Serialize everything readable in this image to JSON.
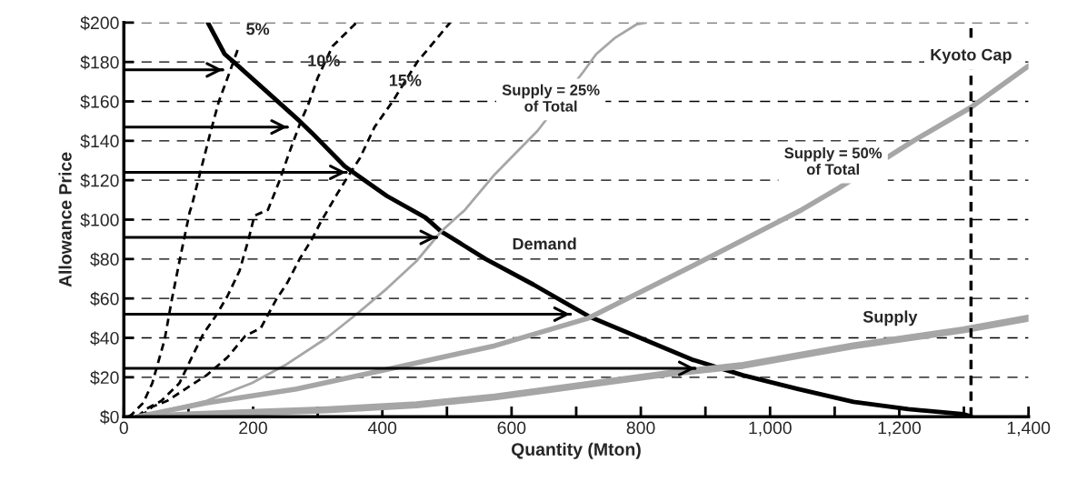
{
  "chart_data": {
    "type": "line",
    "xlabel": "Quantity (Mton)",
    "ylabel": "Allowance Price",
    "xlim": [
      0,
      1400
    ],
    "ylim": [
      0,
      200
    ],
    "xticks": [
      0,
      {
        "value": 100,
        "label": null
      },
      200,
      {
        "value": 300,
        "label": null
      },
      400,
      {
        "value": 500,
        "label": null
      },
      600,
      {
        "value": 700,
        "label": null
      },
      800,
      {
        "value": 900,
        "label": null
      },
      {
        "value": 1000,
        "label": "1,000"
      },
      {
        "value": 1100,
        "label": null
      },
      {
        "value": 1200,
        "label": "1,200"
      },
      {
        "value": 1300,
        "label": null
      },
      {
        "value": 1400,
        "label": "1,400"
      }
    ],
    "yticks": [
      {
        "value": 0,
        "label": "$0"
      },
      {
        "value": 20,
        "label": "$20"
      },
      {
        "value": 40,
        "label": "$40"
      },
      {
        "value": 60,
        "label": "$60"
      },
      {
        "value": 80,
        "label": "$80"
      },
      {
        "value": 100,
        "label": "$100"
      },
      {
        "value": 120,
        "label": "$120"
      },
      {
        "value": 140,
        "label": "$140"
      },
      {
        "value": 160,
        "label": "$160"
      },
      {
        "value": 180,
        "label": "$180"
      },
      {
        "value": 200,
        "label": "$200"
      }
    ],
    "grid": "y",
    "legend": false,
    "series": [
      {
        "color": "#000000",
        "line_style": "solid",
        "x": [
          130,
          156,
          170,
          221,
          272,
          291,
          342,
          407,
          467,
          491,
          560,
          634,
          719,
          799,
          879,
          958,
          1044,
          1129,
          1214,
          1299,
          1311
        ],
        "values": [
          200,
          184,
          180,
          165,
          150,
          144,
          127,
          112,
          101,
          94,
          80,
          67,
          51,
          40,
          29,
          21,
          14,
          7.5,
          3.8,
          1.3,
          0
        ]
      },
      {
        "color": "#000000",
        "line_style": "dashed",
        "x": [
          7,
          12,
          30,
          44,
          63,
          74,
          88,
          102,
          105,
          119,
          133,
          147,
          165,
          177
        ],
        "values": [
          0,
          1,
          7,
          17,
          39,
          59,
          82,
          104,
          107,
          125,
          143,
          160,
          176,
          187
        ]
      },
      {
        "color": "#000000",
        "line_style": "dashed",
        "x": [
          21,
          35,
          58,
          86,
          105,
          123,
          142,
          160,
          179,
          193,
          202,
          223,
          240,
          256,
          274,
          286,
          300,
          323,
          360
        ],
        "values": [
          0,
          4,
          8,
          17,
          30,
          42,
          51,
          61,
          74,
          90,
          102,
          105,
          119,
          134,
          150,
          159,
          172,
          188,
          200
        ]
      },
      {
        "color": "#000000",
        "line_style": "dashed",
        "x": [
          26,
          44,
          67,
          95,
          128,
          160,
          188,
          212,
          235,
          253,
          272,
          291,
          305,
          314,
          330,
          347,
          365,
          388,
          416,
          454,
          505
        ],
        "values": [
          0,
          5,
          8,
          14,
          21,
          30,
          41,
          45,
          59,
          68,
          80,
          90,
          99,
          104,
          113,
          122,
          131,
          147,
          160,
          180,
          200
        ]
      },
      {
        "color": "#a6a6a6",
        "line_style": "solid",
        "x": [
          21,
          128,
          198,
          249,
          314,
          360,
          407,
          453,
          491,
          528,
          574,
          640,
          711,
          731,
          759,
          793,
          808
        ],
        "values": [
          0,
          8,
          17,
          26,
          40,
          52,
          65,
          79,
          94,
          105,
          123,
          145,
          175,
          184,
          192,
          199,
          200
        ]
      },
      {
        "color": "#a6a6a6",
        "line_style": "solid",
        "x": [
          21,
          128,
          267,
          407,
          574,
          719,
          901,
          960,
          1049,
          1106,
          1222,
          1311,
          1400
        ],
        "values": [
          0,
          7,
          14,
          24,
          36,
          50,
          80,
          90,
          105,
          116,
          140,
          157,
          178
        ]
      },
      {
        "color": "#a6a6a6",
        "line_style": "solid",
        "x": [
          50,
          105,
          314,
          453,
          574,
          845,
          958,
          1129,
          1299,
          1400
        ],
        "values": [
          0,
          1,
          3.5,
          6,
          10,
          22,
          26,
          36,
          44,
          50
        ]
      },
      {
        "color": "#000000",
        "line_style": "solid",
        "x": [
          0,
          153
        ],
        "values": [
          176,
          176
        ]
      },
      {
        "color": "#000000",
        "line_style": "solid",
        "x": [
          0,
          253
        ],
        "values": [
          147,
          147
        ]
      },
      {
        "color": "#000000",
        "line_style": "solid",
        "x": [
          0,
          344
        ],
        "values": [
          124,
          124
        ]
      },
      {
        "color": "#000000",
        "line_style": "solid",
        "x": [
          0,
          484
        ],
        "values": [
          91,
          91
        ]
      },
      {
        "color": "#000000",
        "line_style": "solid",
        "x": [
          0,
          691
        ],
        "values": [
          52,
          52
        ]
      },
      {
        "color": "#000000",
        "line_style": "solid",
        "x": [
          0,
          884
        ],
        "values": [
          24.5,
          24.5
        ]
      }
    ],
    "ref_lines": [
      {
        "axis": "x",
        "value": 1311,
        "label": "Kyoto Cap",
        "line_style": "dashed",
        "color": "#000000"
      }
    ],
    "annotations": [
      "5%",
      "10%",
      "15%",
      "Supply = 25%\nof Total",
      "Supply = 50%\nof Total",
      "Demand",
      "Supply"
    ]
  }
}
